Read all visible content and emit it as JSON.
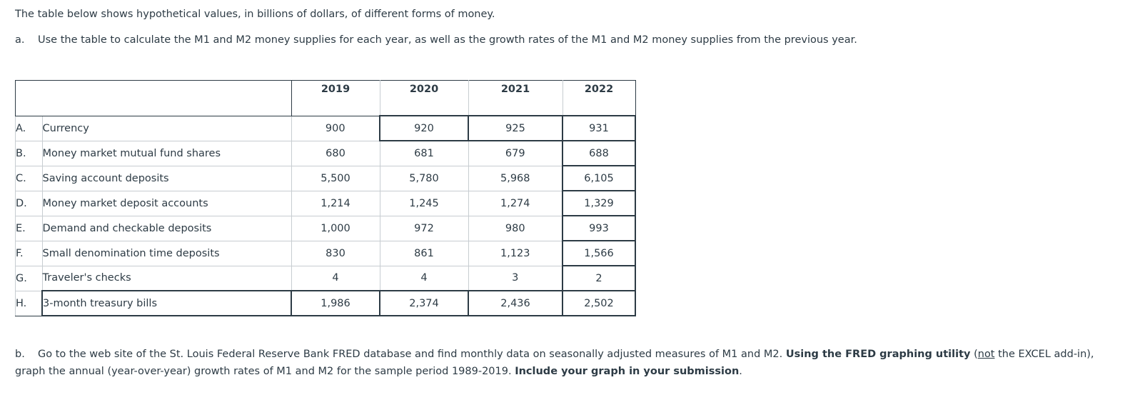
{
  "intro": "The table below shows hypothetical values, in billions of dollars, of different forms of money.",
  "part_a": {
    "letter": "a.",
    "text": "Use the table to calculate the M1 and M2 money supplies for each year, as well as the growth rates of the M1 and M2 money supplies from the previous year."
  },
  "table": {
    "years": [
      "2019",
      "2020",
      "2021",
      "2022"
    ],
    "rows": [
      {
        "letter": "A.",
        "label": "Currency",
        "values": [
          "900",
          "920",
          "925",
          "931"
        ]
      },
      {
        "letter": "B.",
        "label": "Money market mutual fund shares",
        "values": [
          "680",
          "681",
          "679",
          "688"
        ]
      },
      {
        "letter": "C.",
        "label": "Saving account deposits",
        "values": [
          "5,500",
          "5,780",
          "5,968",
          "6,105"
        ]
      },
      {
        "letter": "D.",
        "label": "Money market deposit accounts",
        "values": [
          "1,214",
          "1,245",
          "1,274",
          "1,329"
        ]
      },
      {
        "letter": "E.",
        "label": "Demand and checkable deposits",
        "values": [
          "1,000",
          "972",
          "980",
          "993"
        ]
      },
      {
        "letter": "F.",
        "label": "Small denomination time deposits",
        "values": [
          "830",
          "861",
          "1,123",
          "1,566"
        ]
      },
      {
        "letter": "G.",
        "label": "Traveler's checks",
        "values": [
          "4",
          "4",
          "3",
          "2"
        ]
      },
      {
        "letter": "H.",
        "label": "3-month treasury bills",
        "values": [
          "1,986",
          "2,374",
          "2,436",
          "2,502"
        ]
      }
    ]
  },
  "part_b": {
    "letter": "b.",
    "text1": "Go to the web site of the St. Louis Federal Reserve Bank FRED database and find monthly data on seasonally adjusted measures of M1 and M2. ",
    "bold1": "Using the FRED graphing utility",
    "text2": " (",
    "underline": "not",
    "text3": " the EXCEL add-in), graph the annual (year-over-year) growth rates of M1 and M2 for the sample period 1989-2019. ",
    "bold2": "Include your graph in your submission",
    "text4": "."
  }
}
